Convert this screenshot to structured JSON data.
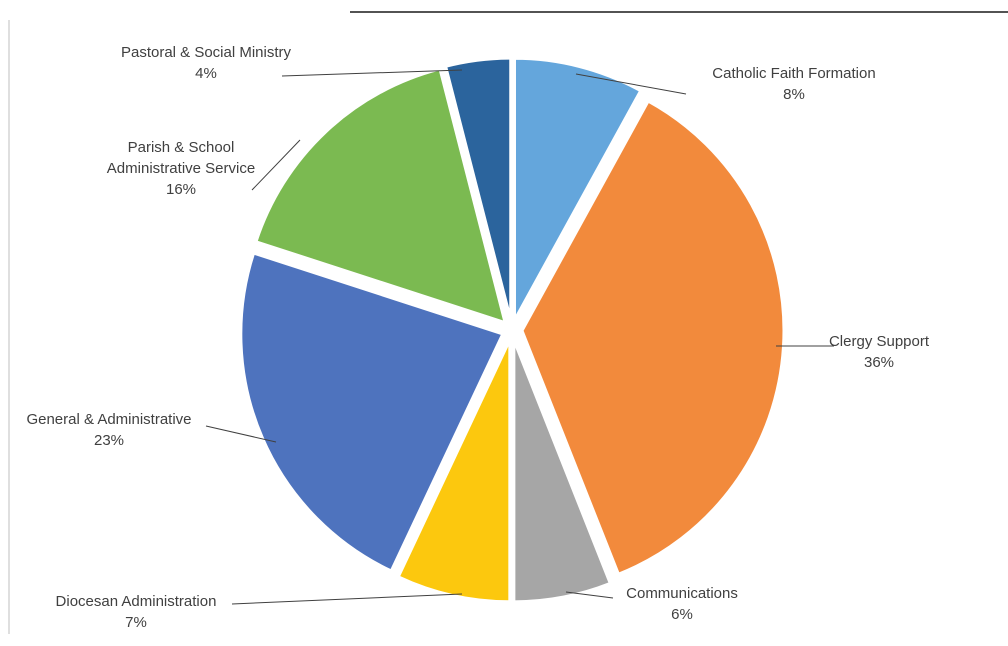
{
  "chart_data": {
    "type": "pie",
    "title": "",
    "slices": [
      {
        "label": "Catholic Faith Formation",
        "value": 8,
        "value_label": "8%",
        "color": "#64A6DC"
      },
      {
        "label": "Clergy Support",
        "value": 36,
        "value_label": "36%",
        "color": "#F28A3C"
      },
      {
        "label": "Communications",
        "value": 6,
        "value_label": "6%",
        "color": "#A6A6A6"
      },
      {
        "label": "Diocesan Administration",
        "value": 7,
        "value_label": "7%",
        "color": "#FCC80E"
      },
      {
        "label": "General & Administrative",
        "value": 23,
        "value_label": "23%",
        "color": "#4E73BE"
      },
      {
        "label": "Parish & School Administrative Service",
        "value": 16,
        "value_label": "16%",
        "color": "#7BBA51",
        "label_lines": [
          "Parish & School",
          "Administrative Service"
        ]
      },
      {
        "label": "Pastoral & Social Ministry",
        "value": 4,
        "value_label": "4%",
        "color": "#2B649D"
      }
    ],
    "exploded": true,
    "legend": "none"
  }
}
